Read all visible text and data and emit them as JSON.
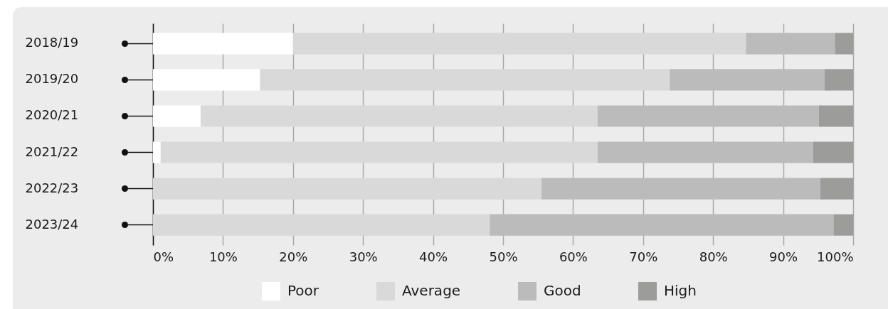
{
  "chart_data": {
    "type": "bar",
    "orientation": "horizontal",
    "stacked": true,
    "categories": [
      "2018/19",
      "2019/20",
      "2020/21",
      "2021/22",
      "2022/23",
      "2023/24"
    ],
    "series": [
      {
        "name": "Poor",
        "color": "#ffffff",
        "values": [
          20,
          15.3,
          6.8,
          1.1,
          0,
          0
        ]
      },
      {
        "name": "Average",
        "color": "#d9d9d9",
        "values": [
          64.7,
          58.5,
          56.7,
          62.4,
          55.5,
          48.1
        ]
      },
      {
        "name": "Good",
        "color": "#bbbbbb",
        "values": [
          12.7,
          22.1,
          31.6,
          30.8,
          39.8,
          49.1
        ]
      },
      {
        "name": "High",
        "color": "#9c9c9a",
        "values": [
          2.6,
          4.1,
          4.9,
          5.7,
          4.7,
          2.8
        ]
      }
    ],
    "xlim": [
      0,
      100
    ],
    "xticks": [
      {
        "value": 0,
        "label": "0%"
      },
      {
        "value": 10,
        "label": "10%"
      },
      {
        "value": 20,
        "label": "20%"
      },
      {
        "value": 30,
        "label": "30%"
      },
      {
        "value": 40,
        "label": "40%"
      },
      {
        "value": 50,
        "label": "50%"
      },
      {
        "value": 60,
        "label": "60%"
      },
      {
        "value": 70,
        "label": "70%"
      },
      {
        "value": 80,
        "label": "80%"
      },
      {
        "value": 90,
        "label": "90%"
      },
      {
        "value": 100,
        "label": "100%"
      }
    ],
    "grid": "x",
    "legend": "bottom"
  }
}
